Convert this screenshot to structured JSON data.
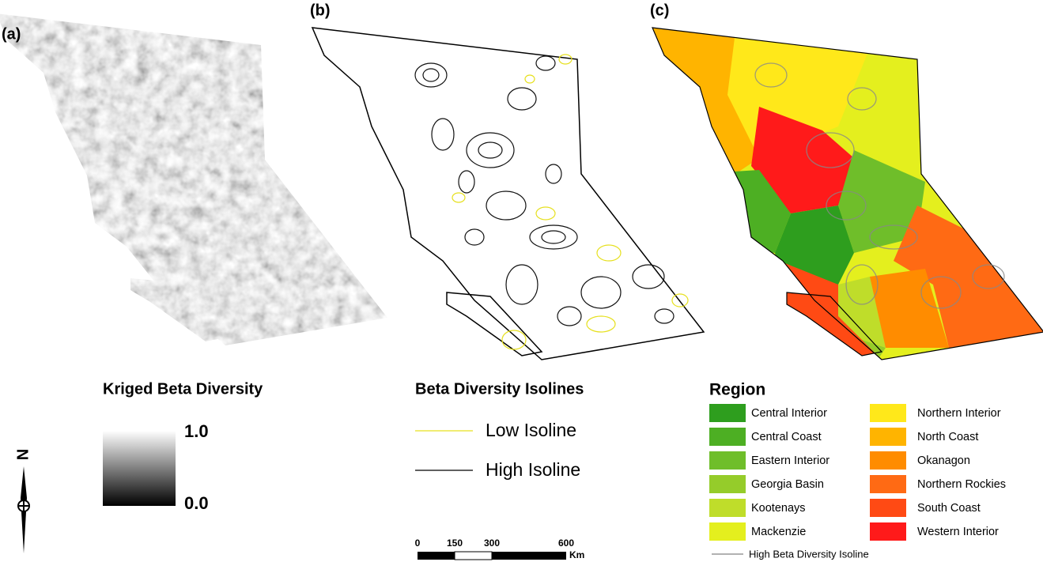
{
  "panels": {
    "a": "(a)",
    "b": "(b)",
    "c": "(c)"
  },
  "legend_a": {
    "title": "Kriged Beta Diversity",
    "high": "1.0",
    "low": "0.0"
  },
  "legend_b": {
    "title": "Beta Diversity Isolines",
    "items": [
      {
        "label": "Low Isoline",
        "color": "#e6e01e"
      },
      {
        "label": "High Isoline",
        "color": "#000000"
      }
    ]
  },
  "legend_c": {
    "title": "Region",
    "items": [
      {
        "label": "Central Interior",
        "color": "#2e9e1e"
      },
      {
        "label": "Central Coast",
        "color": "#4daf23"
      },
      {
        "label": "Eastern Interior",
        "color": "#6fbe2a"
      },
      {
        "label": "Georgia Basin",
        "color": "#95cc2a"
      },
      {
        "label": "Kootenays",
        "color": "#bfdd2a"
      },
      {
        "label": "Mackenzie",
        "color": "#e4ef1e"
      },
      {
        "label": "Northern Interior",
        "color": "#ffe81a"
      },
      {
        "label": "North Coast",
        "color": "#ffb400"
      },
      {
        "label": "Okanagon",
        "color": "#ff8c00"
      },
      {
        "label": "Northern Rockies",
        "color": "#ff6a14"
      },
      {
        "label": "South Coast",
        "color": "#ff4a14"
      },
      {
        "label": "Western Interior",
        "color": "#ff1a1a"
      }
    ],
    "isoline": "High Beta Diversity Isoline"
  },
  "scale_bar": {
    "ticks": [
      "0",
      "150",
      "300",
      "600"
    ],
    "unit": "Km"
  },
  "north": "N"
}
